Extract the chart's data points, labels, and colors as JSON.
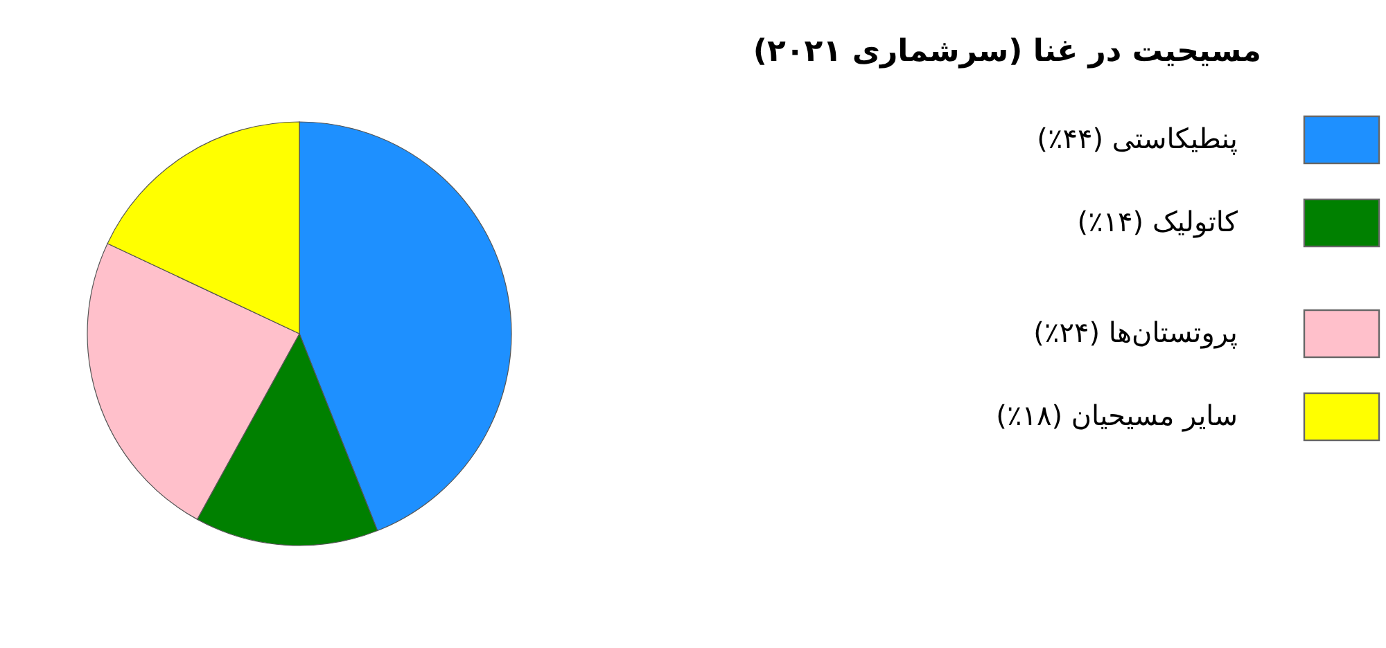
{
  "chart_data": {
    "type": "pie",
    "title": "مسیحیت در غنا (سرشماری ۲۰۲۱)",
    "categories": [
      "پنطیکاستی (۴۴٪)",
      "کاتولیک (۱۴٪)",
      "پروتستان‌ها (۲۴٪)",
      "سایر مسیحیان (۱۸٪)"
    ],
    "values": [
      44,
      14,
      24,
      18
    ],
    "colors": [
      "#1e90ff",
      "#008000",
      "#ffc0cb",
      "#ffff00"
    ],
    "legend": "right"
  }
}
